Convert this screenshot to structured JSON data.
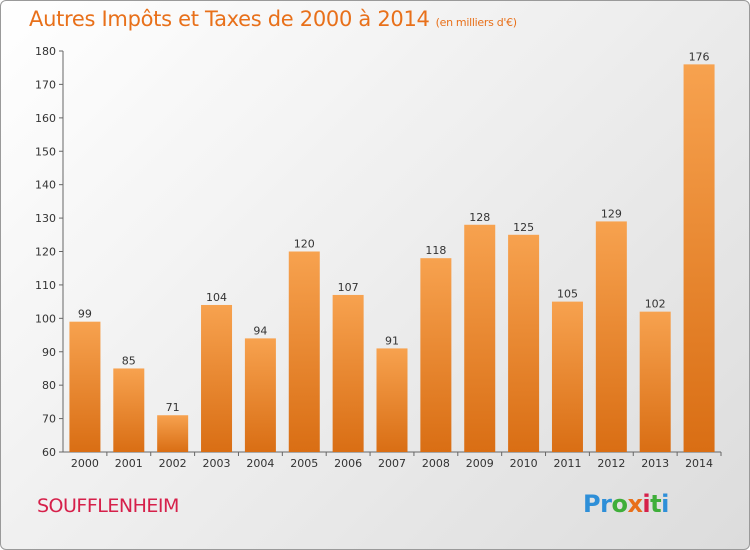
{
  "title": "Autres Impôts et Taxes de 2000 à 2014",
  "unit": "(en milliers d'€)",
  "city": "SOUFFLENHEIM",
  "logo": {
    "letters": [
      "P",
      "r",
      "o",
      "x",
      "i",
      "t",
      "i"
    ],
    "colors": [
      "#2e8fd8",
      "#2e8fd8",
      "#3fae3a",
      "#e8701a",
      "#d6204a",
      "#3fae3a",
      "#2e8fd8"
    ]
  },
  "chart_data": {
    "type": "bar",
    "categories": [
      "2000",
      "2001",
      "2002",
      "2003",
      "2004",
      "2005",
      "2006",
      "2007",
      "2008",
      "2009",
      "2010",
      "2011",
      "2012",
      "2013",
      "2014"
    ],
    "values": [
      99,
      85,
      71,
      104,
      94,
      120,
      107,
      91,
      118,
      128,
      125,
      105,
      129,
      102,
      176
    ],
    "ylim": [
      60,
      180
    ],
    "yticks": [
      60,
      70,
      80,
      90,
      100,
      110,
      120,
      130,
      140,
      150,
      160,
      170,
      180
    ],
    "grid": false,
    "bar_color_top": "#f7a24f",
    "bar_color_bottom": "#d96e14"
  }
}
